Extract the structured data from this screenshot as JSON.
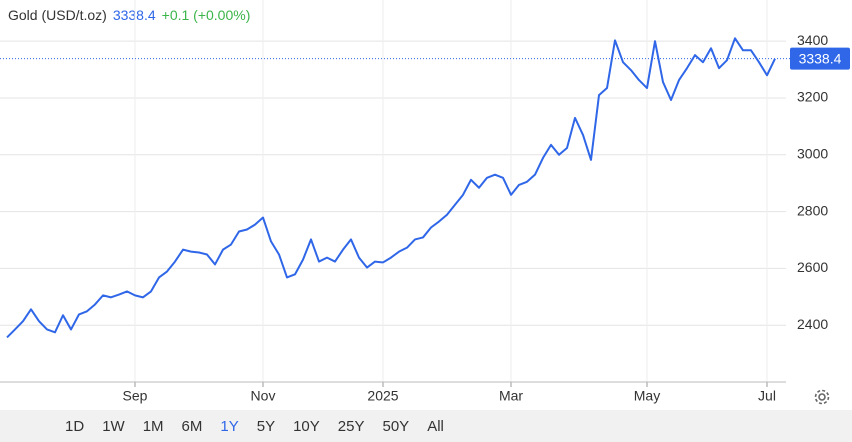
{
  "header": {
    "title": "Gold (USD/t.oz)",
    "price": "3338.4",
    "change": "+0.1 (+0.00%)"
  },
  "chart_data": {
    "type": "line",
    "categories": [
      null,
      null,
      null,
      null,
      null,
      null,
      null,
      null,
      null,
      null,
      null,
      null,
      null,
      null,
      null,
      null,
      "Sep",
      null,
      null,
      null,
      null,
      null,
      null,
      null,
      null,
      null,
      null,
      null,
      null,
      null,
      null,
      null,
      "Nov",
      null,
      null,
      null,
      null,
      null,
      null,
      null,
      null,
      null,
      null,
      null,
      null,
      null,
      null,
      "2025",
      null,
      null,
      null,
      null,
      null,
      null,
      null,
      null,
      null,
      null,
      null,
      null,
      null,
      null,
      null,
      "Mar",
      null,
      null,
      null,
      null,
      null,
      null,
      null,
      null,
      null,
      null,
      null,
      null,
      null,
      null,
      null,
      null,
      "May",
      null,
      null,
      null,
      null,
      null,
      null,
      null,
      null,
      null,
      null,
      null,
      null,
      null,
      null,
      "Jul",
      null
    ],
    "series": [
      {
        "name": "Gold",
        "color": "#2f67e8",
        "values": [
          2357,
          2385,
          2414,
          2456,
          2414,
          2385,
          2375,
          2435,
          2385,
          2438,
          2449,
          2473,
          2505,
          2498,
          2508,
          2519,
          2505,
          2498,
          2519,
          2568,
          2589,
          2624,
          2666,
          2659,
          2656,
          2649,
          2614,
          2666,
          2684,
          2730,
          2737,
          2754,
          2779,
          2695,
          2649,
          2568,
          2579,
          2631,
          2702,
          2624,
          2638,
          2624,
          2666,
          2702,
          2638,
          2603,
          2624,
          2621,
          2638,
          2659,
          2673,
          2702,
          2709,
          2744,
          2765,
          2789,
          2824,
          2859,
          2912,
          2884,
          2919,
          2930,
          2919,
          2859,
          2894,
          2905,
          2930,
          2989,
          3035,
          3000,
          3024,
          3130,
          3070,
          2982,
          3210,
          3235,
          3403,
          3326,
          3298,
          3263,
          3235,
          3400,
          3256,
          3193,
          3263,
          3305,
          3351,
          3326,
          3375,
          3305,
          3333,
          3410,
          3368,
          3368,
          3326,
          3280,
          3338.4
        ]
      }
    ],
    "ylim": [
      2200,
      3545
    ],
    "yticks": [
      2400,
      2600,
      2800,
      3000,
      3200,
      3400
    ],
    "grid": true
  },
  "range_buttons": [
    "1D",
    "1W",
    "1M",
    "6M",
    "1Y",
    "5Y",
    "10Y",
    "25Y",
    "50Y",
    "All"
  ],
  "active_range": "1Y"
}
